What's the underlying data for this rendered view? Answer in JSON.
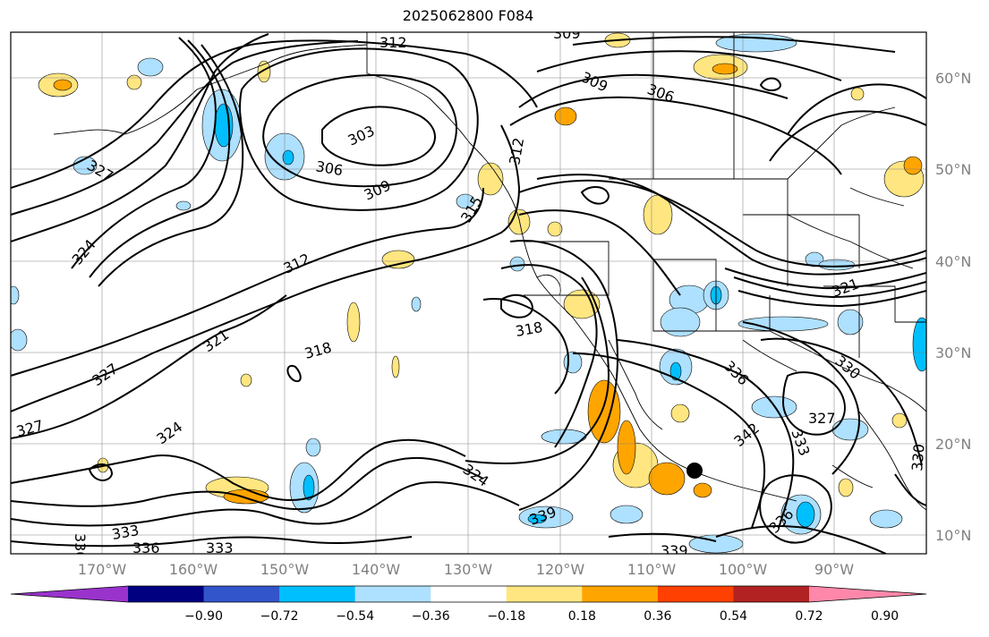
{
  "title": "2025062800 F084",
  "lat_labels": [
    "60°N",
    "50°N",
    "40°N",
    "30°N",
    "20°N",
    "10°N"
  ],
  "lon_labels": [
    "170°W",
    "160°W",
    "150°W",
    "140°W",
    "130°W",
    "120°W",
    "110°W",
    "100°W",
    "90°W"
  ],
  "contour_labels": [
    "312",
    "309",
    "309",
    "306",
    "303",
    "306",
    "309",
    "312",
    "315",
    "312",
    "327",
    "324",
    "321",
    "318",
    "318",
    "327",
    "327",
    "324",
    "324",
    "321",
    "333",
    "336",
    "333",
    "330",
    "339",
    "339",
    "336",
    "342",
    "330",
    "327",
    "333",
    "336",
    "330"
  ],
  "colorbar": {
    "ticks": [
      "−0.90",
      "−0.72",
      "−0.54",
      "−0.36",
      "−0.18",
      "0.18",
      "0.36",
      "0.54",
      "0.72",
      "0.90"
    ],
    "colors": [
      "#9933cc",
      "#000080",
      "#3355cc",
      "#00bfff",
      "#aee0ff",
      "#ffffff",
      "#ffe680",
      "#ffa500",
      "#ff4000",
      "#b22222",
      "#ff88aa"
    ]
  }
}
